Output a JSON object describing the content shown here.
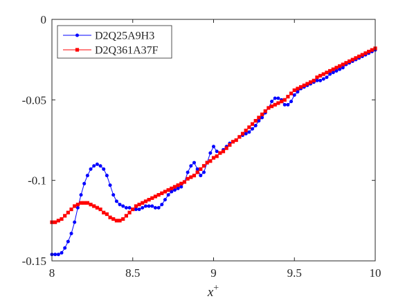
{
  "chart_data": {
    "type": "line",
    "title": "",
    "xlabel": "x",
    "xlabel_superscript": "+",
    "ylabel": "",
    "xlim": [
      8,
      10
    ],
    "ylim": [
      -0.15,
      0
    ],
    "xticks": [
      "8",
      "8.5",
      "9",
      "9.5",
      "10"
    ],
    "yticks": [
      "0",
      "-0.05",
      "-0.1",
      "-0.15"
    ],
    "grid": false,
    "legend_position": "top-left",
    "series": [
      {
        "name": "D2Q25A9H3",
        "color": "#0000ff",
        "marker": "circle",
        "x": [
          8.0,
          8.02,
          8.04,
          8.06,
          8.08,
          8.1,
          8.12,
          8.14,
          8.16,
          8.18,
          8.2,
          8.22,
          8.24,
          8.26,
          8.28,
          8.3,
          8.32,
          8.34,
          8.36,
          8.38,
          8.4,
          8.42,
          8.44,
          8.46,
          8.48,
          8.5,
          8.52,
          8.54,
          8.56,
          8.58,
          8.6,
          8.62,
          8.64,
          8.66,
          8.68,
          8.7,
          8.72,
          8.74,
          8.76,
          8.78,
          8.8,
          8.82,
          8.84,
          8.86,
          8.88,
          8.9,
          8.92,
          8.94,
          8.96,
          8.98,
          9.0,
          9.02,
          9.04,
          9.06,
          9.08,
          9.1,
          9.12,
          9.14,
          9.16,
          9.18,
          9.2,
          9.22,
          9.24,
          9.26,
          9.28,
          9.3,
          9.32,
          9.34,
          9.36,
          9.38,
          9.4,
          9.42,
          9.44,
          9.46,
          9.48,
          9.5,
          9.52,
          9.54,
          9.56,
          9.58,
          9.6,
          9.62,
          9.64,
          9.66,
          9.68,
          9.7,
          9.72,
          9.74,
          9.76,
          9.78,
          9.8,
          9.82,
          9.84,
          9.86,
          9.88,
          9.9,
          9.92,
          9.94,
          9.96,
          9.98,
          10.0
        ],
        "y": [
          -0.146,
          -0.146,
          -0.146,
          -0.145,
          -0.142,
          -0.138,
          -0.133,
          -0.126,
          -0.117,
          -0.109,
          -0.102,
          -0.097,
          -0.093,
          -0.091,
          -0.09,
          -0.091,
          -0.093,
          -0.097,
          -0.103,
          -0.109,
          -0.113,
          -0.115,
          -0.116,
          -0.117,
          -0.117,
          -0.118,
          -0.118,
          -0.118,
          -0.117,
          -0.116,
          -0.116,
          -0.116,
          -0.117,
          -0.117,
          -0.115,
          -0.112,
          -0.109,
          -0.107,
          -0.106,
          -0.105,
          -0.104,
          -0.101,
          -0.095,
          -0.091,
          -0.089,
          -0.093,
          -0.097,
          -0.095,
          -0.089,
          -0.083,
          -0.079,
          -0.082,
          -0.083,
          -0.081,
          -0.079,
          -0.077,
          -0.076,
          -0.075,
          -0.073,
          -0.072,
          -0.071,
          -0.07,
          -0.068,
          -0.066,
          -0.063,
          -0.061,
          -0.058,
          -0.055,
          -0.051,
          -0.049,
          -0.049,
          -0.05,
          -0.053,
          -0.053,
          -0.051,
          -0.047,
          -0.045,
          -0.043,
          -0.042,
          -0.041,
          -0.04,
          -0.039,
          -0.038,
          -0.038,
          -0.037,
          -0.036,
          -0.034,
          -0.033,
          -0.032,
          -0.031,
          -0.03,
          -0.028,
          -0.027,
          -0.026,
          -0.025,
          -0.024,
          -0.023,
          -0.022,
          -0.021,
          -0.02,
          -0.019
        ]
      },
      {
        "name": "D2Q361A37F",
        "color": "#ff0000",
        "marker": "square",
        "x": [
          8.0,
          8.02,
          8.04,
          8.06,
          8.08,
          8.1,
          8.12,
          8.14,
          8.16,
          8.18,
          8.2,
          8.22,
          8.24,
          8.26,
          8.28,
          8.3,
          8.32,
          8.34,
          8.36,
          8.38,
          8.4,
          8.42,
          8.44,
          8.46,
          8.48,
          8.5,
          8.52,
          8.54,
          8.56,
          8.58,
          8.6,
          8.62,
          8.64,
          8.66,
          8.68,
          8.7,
          8.72,
          8.74,
          8.76,
          8.78,
          8.8,
          8.82,
          8.84,
          8.86,
          8.88,
          8.9,
          8.92,
          8.94,
          8.96,
          8.98,
          9.0,
          9.02,
          9.04,
          9.06,
          9.08,
          9.1,
          9.12,
          9.14,
          9.16,
          9.18,
          9.2,
          9.22,
          9.24,
          9.26,
          9.28,
          9.3,
          9.32,
          9.34,
          9.36,
          9.38,
          9.4,
          9.42,
          9.44,
          9.46,
          9.48,
          9.5,
          9.52,
          9.54,
          9.56,
          9.58,
          9.6,
          9.62,
          9.64,
          9.66,
          9.68,
          9.7,
          9.72,
          9.74,
          9.76,
          9.78,
          9.8,
          9.82,
          9.84,
          9.86,
          9.88,
          9.9,
          9.92,
          9.94,
          9.96,
          9.98,
          10.0
        ],
        "y": [
          -0.126,
          -0.126,
          -0.125,
          -0.124,
          -0.122,
          -0.12,
          -0.118,
          -0.116,
          -0.115,
          -0.114,
          -0.114,
          -0.114,
          -0.115,
          -0.116,
          -0.117,
          -0.118,
          -0.12,
          -0.121,
          -0.123,
          -0.124,
          -0.125,
          -0.125,
          -0.124,
          -0.122,
          -0.12,
          -0.118,
          -0.116,
          -0.115,
          -0.114,
          -0.113,
          -0.112,
          -0.111,
          -0.11,
          -0.109,
          -0.108,
          -0.107,
          -0.106,
          -0.105,
          -0.104,
          -0.103,
          -0.102,
          -0.101,
          -0.099,
          -0.098,
          -0.097,
          -0.095,
          -0.093,
          -0.091,
          -0.089,
          -0.088,
          -0.086,
          -0.085,
          -0.083,
          -0.082,
          -0.08,
          -0.078,
          -0.076,
          -0.075,
          -0.073,
          -0.071,
          -0.069,
          -0.067,
          -0.065,
          -0.063,
          -0.061,
          -0.059,
          -0.057,
          -0.055,
          -0.054,
          -0.053,
          -0.052,
          -0.051,
          -0.05,
          -0.048,
          -0.046,
          -0.044,
          -0.043,
          -0.042,
          -0.041,
          -0.04,
          -0.039,
          -0.038,
          -0.036,
          -0.035,
          -0.034,
          -0.033,
          -0.032,
          -0.031,
          -0.03,
          -0.029,
          -0.028,
          -0.027,
          -0.026,
          -0.025,
          -0.024,
          -0.023,
          -0.022,
          -0.021,
          -0.02,
          -0.019,
          -0.018
        ]
      }
    ]
  }
}
